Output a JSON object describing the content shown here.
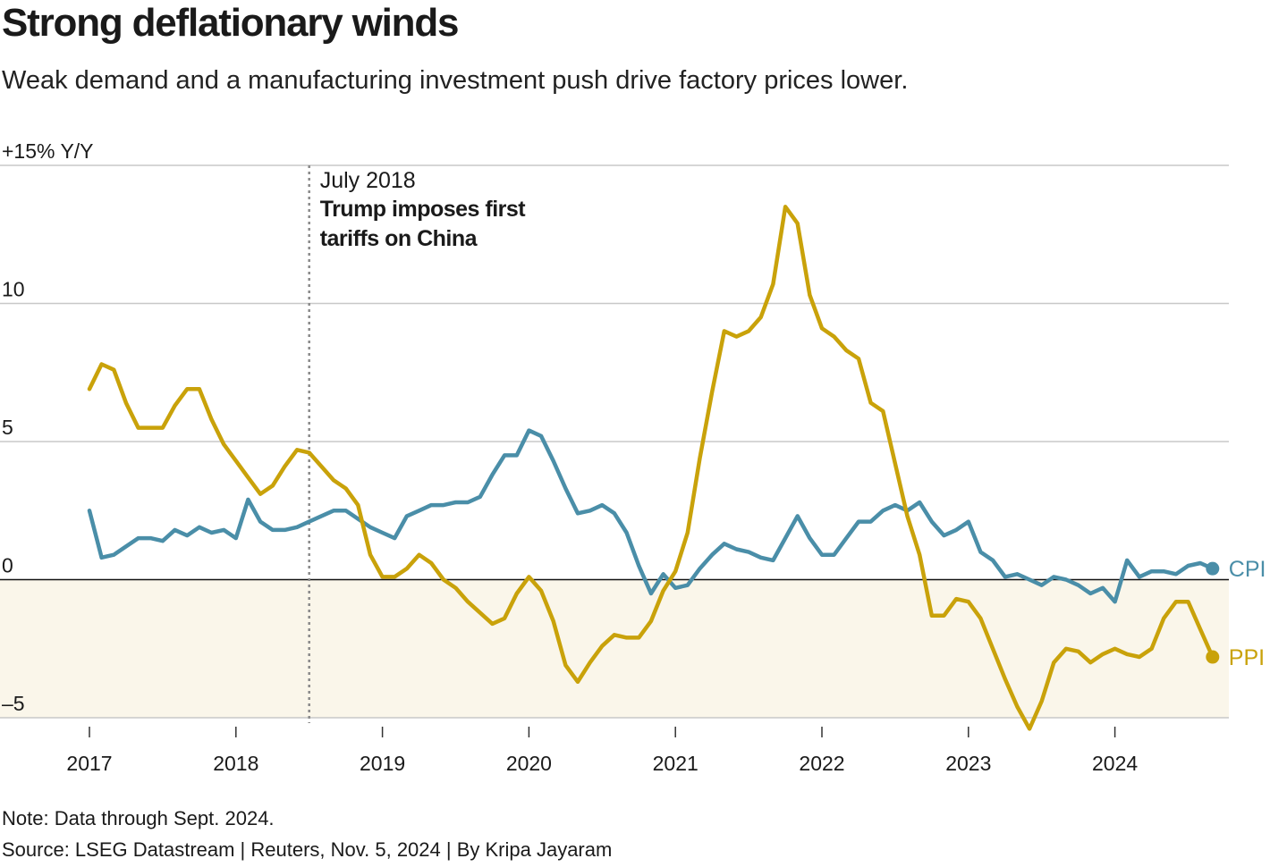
{
  "chart_data": {
    "type": "line",
    "title": "Strong deflationary winds",
    "subtitle": "Weak demand and a manufacturing investment push drive factory prices lower.",
    "y_unit_label": "+15% Y/Y",
    "y_ticks": [
      {
        "value": 15,
        "label": ""
      },
      {
        "value": 10,
        "label": "10"
      },
      {
        "value": 5,
        "label": "5"
      },
      {
        "value": 0,
        "label": "0"
      },
      {
        "value": -5,
        "label": "–5"
      }
    ],
    "ylim": [
      -5,
      15
    ],
    "x_start": 2017,
    "x_end": 2025,
    "x_ticks": [
      {
        "value": 2017,
        "label": "2017"
      },
      {
        "value": 2018,
        "label": "2018"
      },
      {
        "value": 2019,
        "label": "2019"
      },
      {
        "value": 2020,
        "label": "2020"
      },
      {
        "value": 2021,
        "label": "2021"
      },
      {
        "value": 2022,
        "label": "2022"
      },
      {
        "value": 2023,
        "label": "2023"
      },
      {
        "value": 2024,
        "label": "2024"
      }
    ],
    "negative_region_color": "#faf6ea",
    "annotation": {
      "x": 2018.5,
      "date_label": "July 2018",
      "line1": "Trump imposes first",
      "line2": "tariffs on China"
    },
    "series": [
      {
        "name": "CPI",
        "color": "#4a8ea8",
        "x_start": 2017,
        "step_months": 1,
        "values": [
          2.5,
          0.8,
          0.9,
          1.2,
          1.5,
          1.5,
          1.4,
          1.8,
          1.6,
          1.9,
          1.7,
          1.8,
          1.5,
          2.9,
          2.1,
          1.8,
          1.8,
          1.9,
          2.1,
          2.3,
          2.5,
          2.5,
          2.2,
          1.9,
          1.7,
          1.5,
          2.3,
          2.5,
          2.7,
          2.7,
          2.8,
          2.8,
          3.0,
          3.8,
          4.5,
          4.5,
          5.4,
          5.2,
          4.3,
          3.3,
          2.4,
          2.5,
          2.7,
          2.4,
          1.7,
          0.5,
          -0.5,
          0.2,
          -0.3,
          -0.2,
          0.4,
          0.9,
          1.3,
          1.1,
          1.0,
          0.8,
          0.7,
          1.5,
          2.3,
          1.5,
          0.9,
          0.9,
          1.5,
          2.1,
          2.1,
          2.5,
          2.7,
          2.5,
          2.8,
          2.1,
          1.6,
          1.8,
          2.1,
          1.0,
          0.7,
          0.1,
          0.2,
          0.0,
          -0.2,
          0.1,
          0.0,
          -0.2,
          -0.5,
          -0.3,
          -0.8,
          0.7,
          0.1,
          0.3,
          0.3,
          0.2,
          0.5,
          0.6,
          0.4
        ],
        "end_label": "CPI"
      },
      {
        "name": "PPI",
        "color": "#c9a20a",
        "x_start": 2017,
        "step_months": 1,
        "values": [
          6.9,
          7.8,
          7.6,
          6.4,
          5.5,
          5.5,
          5.5,
          6.3,
          6.9,
          6.9,
          5.8,
          4.9,
          4.3,
          3.7,
          3.1,
          3.4,
          4.1,
          4.7,
          4.6,
          4.1,
          3.6,
          3.3,
          2.7,
          0.9,
          0.1,
          0.1,
          0.4,
          0.9,
          0.6,
          0.0,
          -0.3,
          -0.8,
          -1.2,
          -1.6,
          -1.4,
          -0.5,
          0.1,
          -0.4,
          -1.5,
          -3.1,
          -3.7,
          -3.0,
          -2.4,
          -2.0,
          -2.1,
          -2.1,
          -1.5,
          -0.4,
          0.3,
          1.7,
          4.4,
          6.8,
          9.0,
          8.8,
          9.0,
          9.5,
          10.7,
          13.5,
          12.9,
          10.3,
          9.1,
          8.8,
          8.3,
          8.0,
          6.4,
          6.1,
          4.2,
          2.3,
          0.9,
          -1.3,
          -1.3,
          -0.7,
          -0.8,
          -1.4,
          -2.5,
          -3.6,
          -4.6,
          -5.4,
          -4.4,
          -3.0,
          -2.5,
          -2.6,
          -3.0,
          -2.7,
          -2.5,
          -2.7,
          -2.8,
          -2.5,
          -1.4,
          -0.8,
          -0.8,
          -1.8,
          -2.8
        ],
        "end_label": "PPI"
      }
    ]
  },
  "footer": {
    "note": "Note: Data through Sept. 2024.",
    "source": "Source: LSEG Datastream | Reuters, Nov. 5, 2024 | By Kripa Jayaram"
  }
}
